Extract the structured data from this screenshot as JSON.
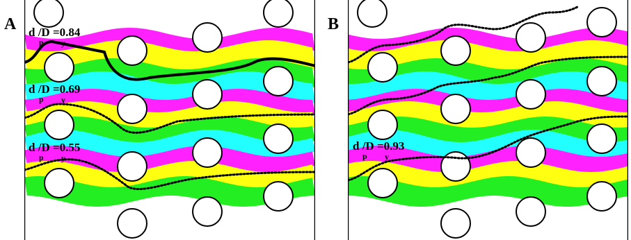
{
  "panels": [
    {
      "letter": "A",
      "labels": [
        {
          "main": "d  /D  =0.84",
          "sub1": "p",
          "sub2": "y"
        },
        {
          "main": "d  /D  =0.69",
          "sub1": "p",
          "sub2": "y"
        },
        {
          "main": "d  /D  =0.55",
          "sub1": "p",
          "sub2": "y"
        }
      ]
    },
    {
      "letter": "B",
      "labels": [
        {
          "main": "d  /D  =0.93",
          "sub1": "p",
          "sub2": "y"
        }
      ]
    }
  ],
  "colors": {
    "magenta": "#ff22ff",
    "yellow": "#ffff11",
    "green": "#22ee22",
    "cyan": "#22ffff",
    "post_stroke": "#000000",
    "background": "#ffffff"
  }
}
